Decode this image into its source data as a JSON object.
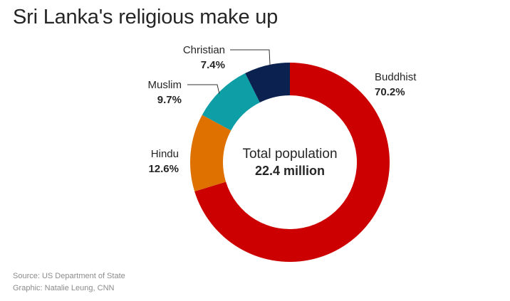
{
  "title": "Sri Lanka's religious make up",
  "center_text": {
    "line1": "Total population",
    "line2": "22.4 million"
  },
  "footer": {
    "source": "Source: US Department of State",
    "graphic": "Graphic: Natalie Leung, CNN"
  },
  "chart_data": {
    "type": "pie",
    "donut": true,
    "categories": [
      "Buddhist",
      "Hindu",
      "Muslim",
      "Christian"
    ],
    "values": [
      70.2,
      12.6,
      9.7,
      7.4
    ],
    "value_labels": [
      "70.2%",
      "12.6%",
      "9.7%",
      "7.4%"
    ],
    "colors": [
      "#cc0000",
      "#de7100",
      "#0e9ea6",
      "#0b2150"
    ],
    "start": "top",
    "direction": "clockwise",
    "legend": "none"
  }
}
